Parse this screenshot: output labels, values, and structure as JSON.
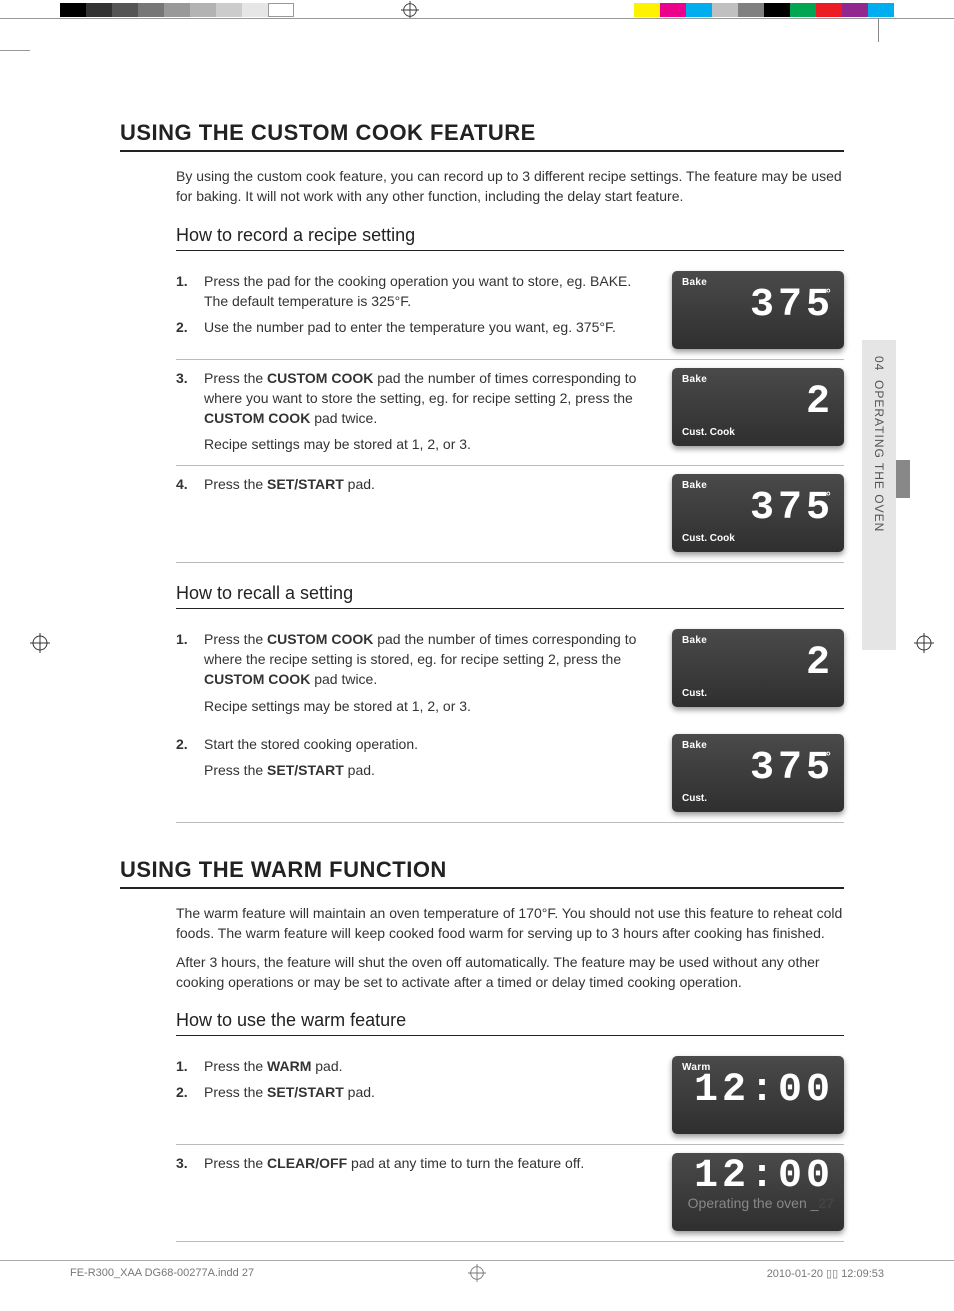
{
  "printerMarks": {
    "leftSwatches": [
      "#000000",
      "#333333",
      "#555555",
      "#777777",
      "#999999",
      "#b3b3b3",
      "#cccccc",
      "#e6e6e6",
      "#ffffff"
    ],
    "rightSwatches": [
      "#fff200",
      "#ec008c",
      "#00aeef",
      "#c0c0c0",
      "#808080",
      "#000000",
      "#00a651",
      "#ed1c24",
      "#92278f",
      "#00adee"
    ]
  },
  "sideTab": {
    "chapter": "04",
    "title": "OPERATING THE OVEN"
  },
  "section1": {
    "heading": "USING THE CUSTOM COOK FEATURE",
    "intro": "By using the custom cook feature, you can record up to 3 different recipe settings. The feature may be used for baking. It will not work with any other function, including the delay start feature.",
    "sub1": {
      "heading": "How to record a recipe setting",
      "groups": [
        {
          "items": [
            {
              "num": "1",
              "html": "Press the pad for the cooking operation you want to store, eg. BAKE. The default temperature is 325°F."
            },
            {
              "num": "2",
              "html": "Use the number pad to enter the temperature you want, eg. 375°F."
            }
          ],
          "display": {
            "top": "Bake",
            "big": "375",
            "deg": true,
            "bot": ""
          }
        },
        {
          "items": [
            {
              "num": "3",
              "html": "Press the <b>CUSTOM COOK</b> pad the number of times corresponding to where you want to store the setting, eg. for recipe setting 2, press the <b>CUSTOM COOK</b> pad twice."
            }
          ],
          "supp": "Recipe settings may be stored at 1, 2, or 3.",
          "display": {
            "top": "Bake",
            "big": "2",
            "deg": false,
            "bot": "Cust. Cook"
          }
        },
        {
          "items": [
            {
              "num": "4",
              "html": "Press the <b>SET/START</b> pad."
            }
          ],
          "display": {
            "top": "Bake",
            "big": "375",
            "deg": true,
            "bot": "Cust. Cook"
          }
        }
      ]
    },
    "sub2": {
      "heading": "How to recall a setting",
      "groups": [
        {
          "items": [
            {
              "num": "1",
              "html": "Press the <b>CUSTOM COOK</b> pad the number of times corresponding to where the recipe setting is stored, eg. for recipe setting 2, press the <b>CUSTOM COOK</b> pad twice."
            }
          ],
          "supp": "Recipe settings may be stored at 1, 2, or 3.",
          "display": {
            "top": "Bake",
            "big": "2",
            "deg": false,
            "bot": "Cust."
          },
          "noborder": true
        },
        {
          "items": [
            {
              "num": "2",
              "html": "Start the stored cooking operation."
            }
          ],
          "supp": "Press the <b>SET/START</b> pad.",
          "display": {
            "top": "Bake",
            "big": "375",
            "deg": true,
            "bot": "Cust."
          }
        }
      ]
    }
  },
  "section2": {
    "heading": "USING THE WARM FUNCTION",
    "intro1": "The warm feature will maintain an oven temperature of 170°F. You should not use this feature to reheat cold foods. The warm feature will keep cooked food warm for serving up to 3 hours after cooking has finished.",
    "intro2": "After 3 hours, the feature will shut the oven off automatically. The feature may be used without any other cooking operations or may be set to activate after a timed or delay timed cooking operation.",
    "sub": {
      "heading": "How to use the warm feature",
      "groups": [
        {
          "items": [
            {
              "num": "1",
              "html": "Press the <b>WARM</b> pad."
            },
            {
              "num": "2",
              "html": "Press the <b>SET/START</b> pad."
            }
          ],
          "display": {
            "top": "Warm",
            "big": "12:00",
            "deg": false,
            "bot": ""
          }
        },
        {
          "items": [
            {
              "num": "3",
              "html": "Press the <b>CLEAR/OFF</b> pad at any time to turn the feature off."
            }
          ],
          "display": {
            "top": "",
            "big": "12:00",
            "deg": false,
            "bot": ""
          }
        }
      ]
    }
  },
  "footer": {
    "label": "Operating the oven _",
    "page": "27"
  },
  "printLine": {
    "left": "FE-R300_XAA DG68-00277A.indd   27",
    "right": "2010-01-20   ▯▯ 12:09:53"
  }
}
